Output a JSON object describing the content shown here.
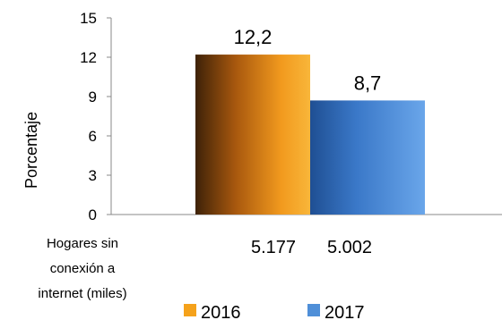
{
  "chart_data": {
    "type": "bar",
    "categories": [
      ""
    ],
    "series": [
      {
        "name": "2016",
        "values": [
          12.2
        ],
        "color": "#f5a21b",
        "label": "12,2"
      },
      {
        "name": "2017",
        "values": [
          8.7
        ],
        "color": "#4f8fd8",
        "label": "8,7"
      }
    ],
    "ylabel": "Porcentaje",
    "ylim": [
      0,
      15
    ],
    "yticks": [
      "0",
      "3",
      "6",
      "9",
      "12",
      "15"
    ],
    "grid": false,
    "legend_position": "bottom",
    "table_row": {
      "label_lines": [
        "Hogares sin",
        "conexión a",
        "internet (miles)"
      ],
      "values": [
        "5.177",
        "5.002"
      ]
    }
  }
}
